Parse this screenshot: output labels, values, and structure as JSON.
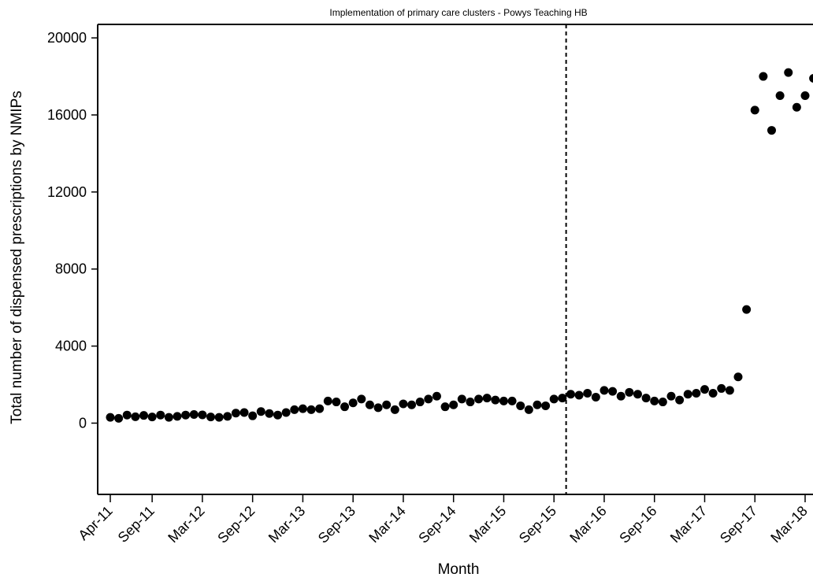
{
  "chart_data": {
    "type": "scatter",
    "title": "Implementation of primary care clusters - Powys Teaching HB",
    "xlabel": "Month",
    "ylabel": "Total number of dispensed prescriptions by NMIPs",
    "x_tick_labels": [
      "Apr-11",
      "Sep-11",
      "Mar-12",
      "Sep-12",
      "Mar-13",
      "Sep-13",
      "Mar-14",
      "Sep-14",
      "Mar-15",
      "Sep-15",
      "Mar-16",
      "Sep-16",
      "Mar-17",
      "Sep-17",
      "Mar-18"
    ],
    "x_tick_months": [
      "2011-04",
      "2011-09",
      "2012-03",
      "2012-09",
      "2013-03",
      "2013-09",
      "2014-03",
      "2014-09",
      "2015-03",
      "2015-09",
      "2016-03",
      "2016-09",
      "2017-03",
      "2017-09",
      "2018-03"
    ],
    "x_range": [
      "2011-03",
      "2018-03"
    ],
    "y_ticks": [
      0,
      4000,
      8000,
      12000,
      16000,
      20000
    ],
    "y_tick_labels": [
      "0",
      "4000",
      "8000",
      "12000",
      "16000",
      "20000"
    ],
    "ylim": [
      -3700,
      20700
    ],
    "intervention_month": "2015-11",
    "grid": false,
    "series": [
      {
        "months": [
          "2011-04",
          "2011-05",
          "2011-06",
          "2011-07",
          "2011-08",
          "2011-09",
          "2011-10",
          "2011-11",
          "2011-12",
          "2012-01",
          "2012-02",
          "2012-03",
          "2012-04",
          "2012-05",
          "2012-06",
          "2012-07",
          "2012-08",
          "2012-09",
          "2012-10",
          "2012-11",
          "2012-12",
          "2013-01",
          "2013-02",
          "2013-03",
          "2013-04",
          "2013-05",
          "2013-06",
          "2013-07",
          "2013-08",
          "2013-09",
          "2013-10",
          "2013-11",
          "2013-12",
          "2014-01",
          "2014-02",
          "2014-03",
          "2014-04",
          "2014-05",
          "2014-06",
          "2014-07",
          "2014-08",
          "2014-09",
          "2014-10",
          "2014-11",
          "2014-12",
          "2015-01",
          "2015-02",
          "2015-03",
          "2015-04",
          "2015-05",
          "2015-06",
          "2015-07",
          "2015-08",
          "2015-09",
          "2015-10",
          "2015-11",
          "2015-12",
          "2016-01",
          "2016-02",
          "2016-03",
          "2016-04",
          "2016-05",
          "2016-06",
          "2016-07",
          "2016-08",
          "2016-09",
          "2016-10",
          "2016-11",
          "2016-12",
          "2017-01",
          "2017-02",
          "2017-03",
          "2017-04",
          "2017-05",
          "2017-06",
          "2017-07",
          "2017-08",
          "2017-09",
          "2017-10",
          "2017-11",
          "2017-12",
          "2018-01",
          "2018-02",
          "2018-03",
          "2018-04"
        ],
        "values": [
          300,
          250,
          420,
          330,
          400,
          320,
          420,
          300,
          350,
          420,
          450,
          430,
          320,
          300,
          350,
          520,
          550,
          380,
          600,
          500,
          420,
          550,
          700,
          750,
          700,
          750,
          1150,
          1100,
          850,
          1050,
          1250,
          950,
          800,
          950,
          700,
          1000,
          950,
          1100,
          1250,
          1400,
          850,
          950,
          1250,
          1100,
          1250,
          1300,
          1200,
          1150,
          1150,
          900,
          700,
          950,
          900,
          1250,
          1300,
          1500,
          1450,
          1550,
          1350,
          1700,
          1650,
          1400,
          1600,
          1500,
          1300,
          1150,
          1100,
          1400,
          1200,
          1500,
          1550,
          1750,
          1550,
          1800,
          1700,
          2400,
          5900,
          16250,
          18000,
          15200,
          17000,
          18200,
          16400,
          17000,
          17900
        ]
      }
    ]
  }
}
